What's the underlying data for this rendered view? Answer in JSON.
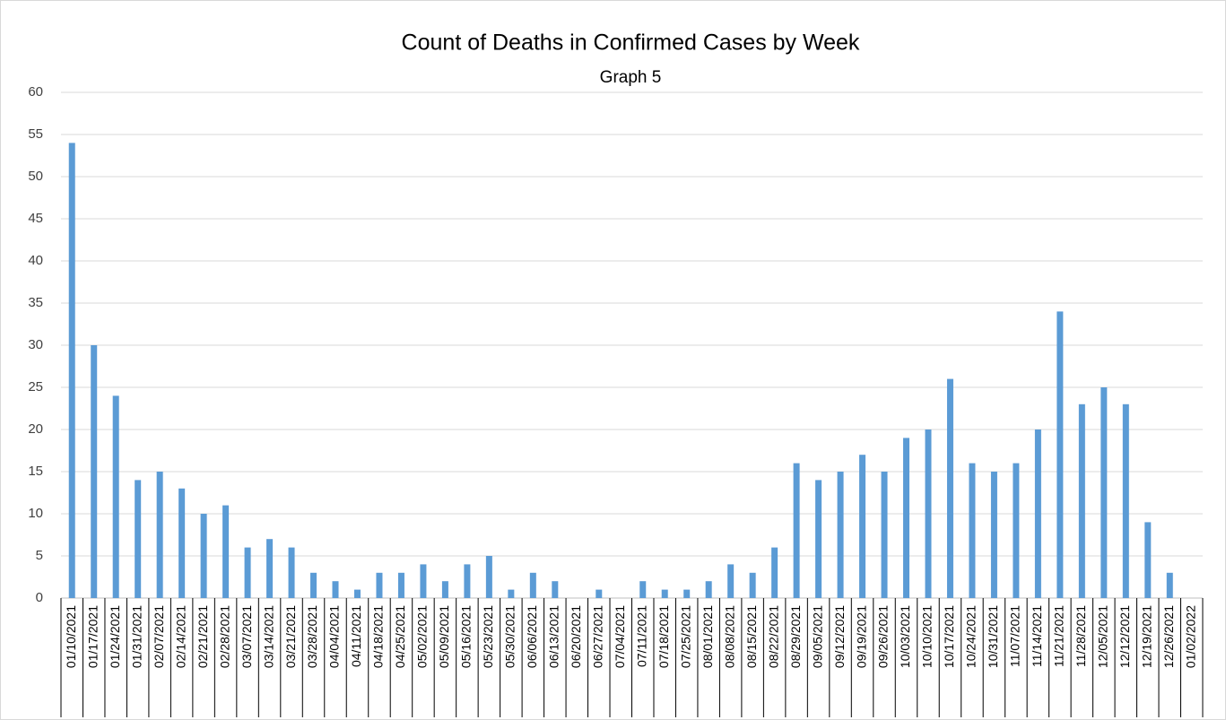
{
  "chart_data": {
    "type": "bar",
    "title": "Count of Deaths in Confirmed Cases by Week",
    "subtitle": "Graph 5",
    "categories": [
      "01/10/2021",
      "01/17/2021",
      "01/24/2021",
      "01/31/2021",
      "02/07/2021",
      "02/14/2021",
      "02/21/2021",
      "02/28/2021",
      "03/07/2021",
      "03/14/2021",
      "03/21/2021",
      "03/28/2021",
      "04/04/2021",
      "04/11/2021",
      "04/18/2021",
      "04/25/2021",
      "05/02/2021",
      "05/09/2021",
      "05/16/2021",
      "05/23/2021",
      "05/30/2021",
      "06/06/2021",
      "06/13/2021",
      "06/20/2021",
      "06/27/2021",
      "07/04/2021",
      "07/11/2021",
      "07/18/2021",
      "07/25/2021",
      "08/01/2021",
      "08/08/2021",
      "08/15/2021",
      "08/22/2021",
      "08/29/2021",
      "09/05/2021",
      "09/12/2021",
      "09/19/2021",
      "09/26/2021",
      "10/03/2021",
      "10/10/2021",
      "10/17/2021",
      "10/24/2021",
      "10/31/2021",
      "11/07/2021",
      "11/14/2021",
      "11/21/2021",
      "11/28/2021",
      "12/05/2021",
      "12/12/2021",
      "12/19/2021",
      "12/26/2021",
      "01/02/2022"
    ],
    "values": [
      54,
      30,
      24,
      14,
      15,
      13,
      10,
      11,
      6,
      7,
      6,
      3,
      2,
      1,
      3,
      3,
      4,
      2,
      4,
      5,
      1,
      3,
      2,
      0,
      1,
      0,
      2,
      1,
      1,
      2,
      4,
      3,
      6,
      16,
      14,
      15,
      17,
      15,
      19,
      20,
      26,
      16,
      15,
      16,
      20,
      34,
      23,
      25,
      23,
      9,
      3,
      0
    ],
    "color": "#5b9bd5",
    "ylim": [
      0,
      60
    ],
    "yticks": [
      0,
      5,
      10,
      15,
      20,
      25,
      30,
      35,
      40,
      45,
      50,
      55,
      60
    ],
    "grid": true
  }
}
